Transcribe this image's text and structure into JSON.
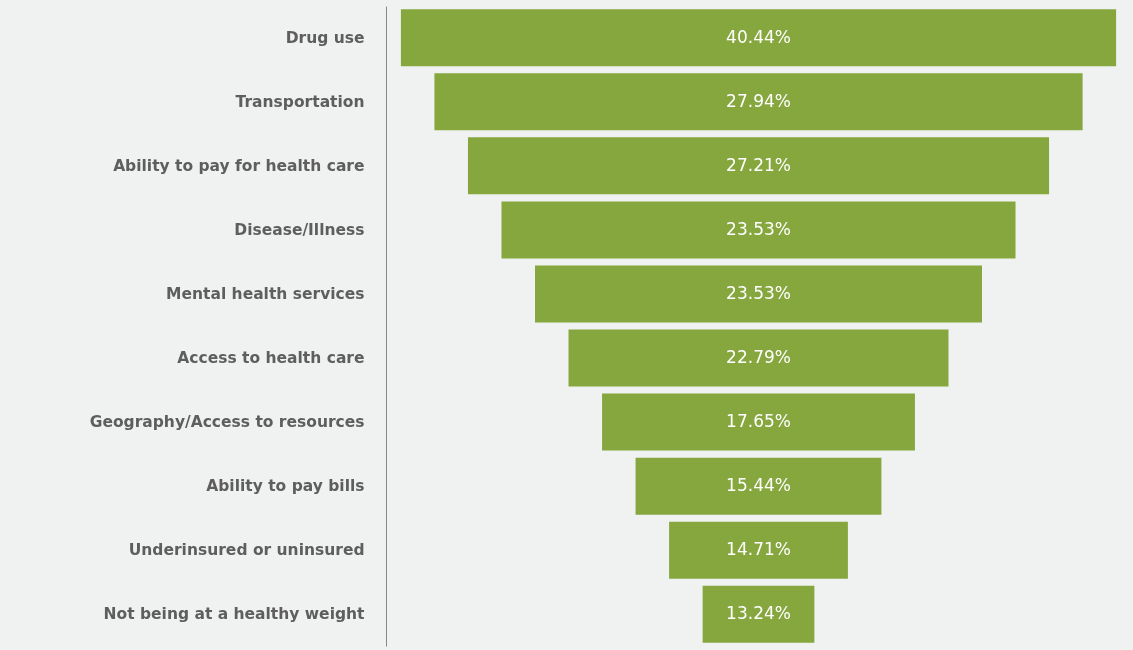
{
  "chart_data": {
    "type": "other",
    "categories": [
      "Drug use",
      "Transportation",
      "Ability to pay for health care",
      "Disease/Illness",
      "Mental health services",
      "Access to health care",
      "Geography/Access to resources",
      "Ability to pay bills",
      "Underinsured or uninsured",
      "Not being at a healthy weight"
    ],
    "values": [
      40.44,
      27.94,
      27.21,
      23.53,
      23.53,
      22.79,
      17.65,
      15.44,
      14.71,
      13.24
    ],
    "value_labels": [
      "40.44%",
      "27.94%",
      "27.21%",
      "23.53%",
      "23.53%",
      "22.79%",
      "17.65%",
      "15.44%",
      "14.71%",
      "13.24%"
    ],
    "color": "#86a73e"
  }
}
